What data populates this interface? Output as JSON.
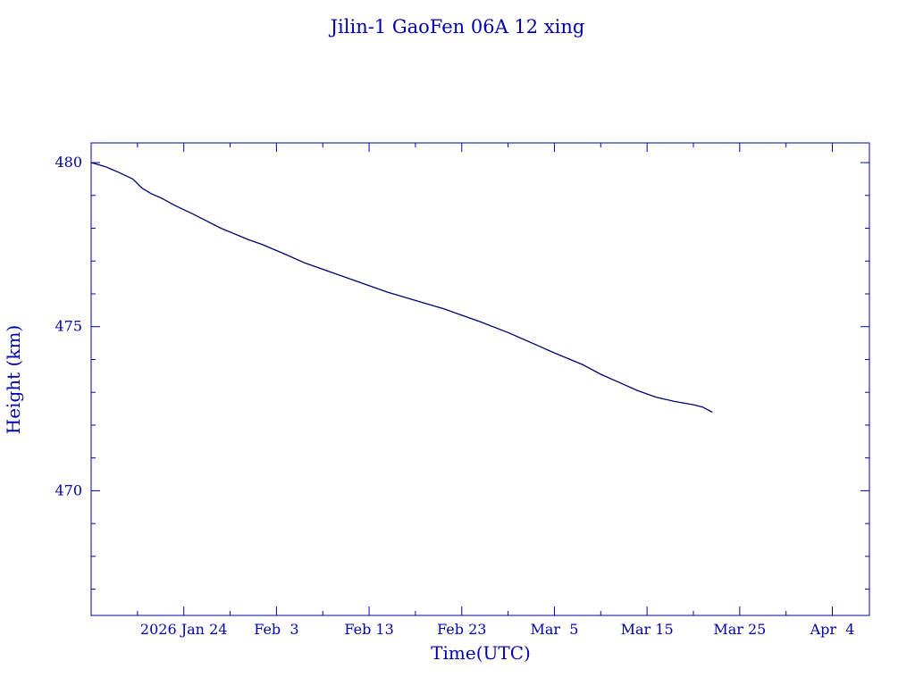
{
  "chart_data": {
    "type": "line",
    "title": "Jilin-1 GaoFen 06A 12 xing",
    "xlabel": "Time(UTC)",
    "ylabel": "Height (km)",
    "x_ticks": [
      {
        "date": "2026-01-24",
        "label": "2026 Jan 24"
      },
      {
        "date": "2026-02-03",
        "label": "Feb  3"
      },
      {
        "date": "2026-02-13",
        "label": "Feb 13"
      },
      {
        "date": "2026-02-23",
        "label": "Feb 23"
      },
      {
        "date": "2026-03-05",
        "label": "Mar  5"
      },
      {
        "date": "2026-03-15",
        "label": "Mar 15"
      },
      {
        "date": "2026-03-25",
        "label": "Mar 25"
      },
      {
        "date": "2026-04-04",
        "label": "Apr  4"
      }
    ],
    "y_ticks": [
      470,
      475,
      480
    ],
    "xlim": [
      "2026-01-14",
      "2026-04-08"
    ],
    "ylim": [
      466.2,
      480.6
    ],
    "grid": false,
    "colors": {
      "axis": "#0000aa",
      "line": "#00006e",
      "text": "#0000aa"
    },
    "series": [
      {
        "x": [
          "2026-01-14T00:00",
          "2026-01-15T12:00",
          "2026-01-17T00:00",
          "2026-01-18T12:00",
          "2026-01-19T12:00",
          "2026-01-20T12:00",
          "2026-01-21T12:00",
          "2026-01-23T00:00",
          "2026-01-25T00:00",
          "2026-01-28T00:00",
          "2026-01-31T00:00",
          "2026-02-01T12:00",
          "2026-02-04T00:00",
          "2026-02-06T00:00",
          "2026-02-09T00:00",
          "2026-02-12T00:00",
          "2026-02-15T00:00",
          "2026-02-18T00:00",
          "2026-02-21T00:00",
          "2026-02-23T00:00",
          "2026-02-25T00:00",
          "2026-02-28T00:00",
          "2026-03-03T00:00",
          "2026-03-05T00:00",
          "2026-03-08T00:00",
          "2026-03-10T00:00",
          "2026-03-12T00:00",
          "2026-03-14T00:00",
          "2026-03-16T00:00",
          "2026-03-18T00:00",
          "2026-03-20T00:00",
          "2026-03-21T00:00",
          "2026-03-22T00:00"
        ],
        "y": [
          480.0,
          479.88,
          479.7,
          479.5,
          479.22,
          479.05,
          478.93,
          478.7,
          478.43,
          478.0,
          477.65,
          477.5,
          477.2,
          476.95,
          476.65,
          476.35,
          476.05,
          475.8,
          475.55,
          475.35,
          475.15,
          474.82,
          474.45,
          474.2,
          473.85,
          473.55,
          473.3,
          473.05,
          472.85,
          472.72,
          472.62,
          472.55,
          472.4
        ]
      }
    ]
  }
}
